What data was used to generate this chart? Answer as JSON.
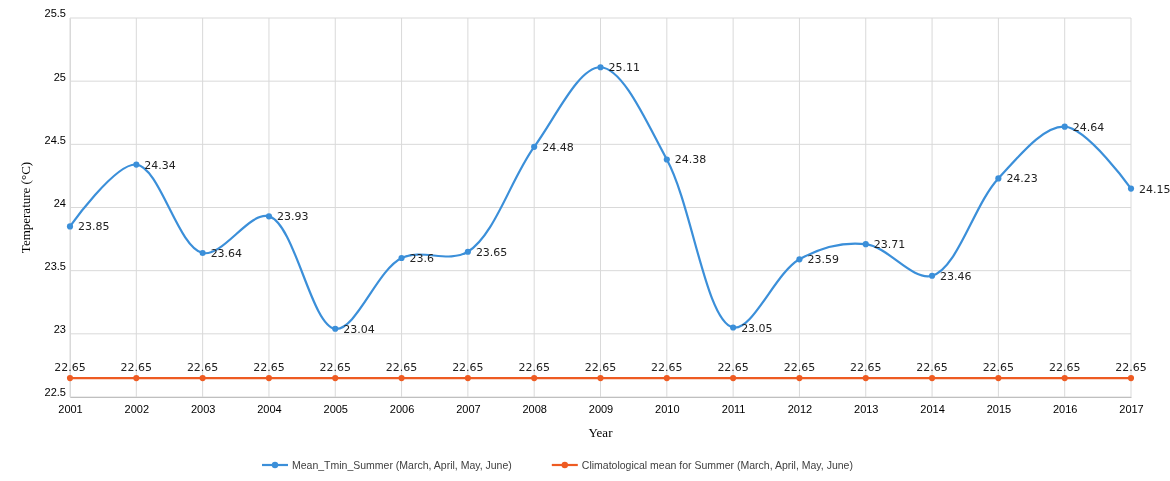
{
  "chart_data": {
    "type": "line",
    "xlabel": "Year",
    "ylabel": "Temperature (°C)",
    "categories": [
      "2001",
      "2002",
      "2003",
      "2004",
      "2005",
      "2006",
      "2007",
      "2008",
      "2009",
      "2010",
      "2011",
      "2012",
      "2013",
      "2014",
      "2015",
      "2016",
      "2017"
    ],
    "series": [
      {
        "name": "Mean_Tmin_Summer (March, April, May, June)",
        "color": "#3b8fd9",
        "values": [
          23.85,
          24.34,
          23.64,
          23.93,
          23.04,
          23.6,
          23.65,
          24.48,
          25.11,
          24.38,
          23.05,
          23.59,
          23.71,
          23.46,
          24.23,
          24.64,
          24.15
        ]
      },
      {
        "name": "Climatological mean for Summer (March, April, May, June)",
        "color": "#ee5b22",
        "values": [
          22.65,
          22.65,
          22.65,
          22.65,
          22.65,
          22.65,
          22.65,
          22.65,
          22.65,
          22.65,
          22.65,
          22.65,
          22.65,
          22.65,
          22.65,
          22.65,
          22.65
        ]
      }
    ],
    "ylim": [
      22.5,
      25.5
    ],
    "yticks": [
      22.5,
      23,
      23.5,
      24,
      24.5,
      25,
      25.5
    ],
    "grid": true,
    "legend": "bottom",
    "marker": "circle",
    "line_style": "solid",
    "data_labels": true
  }
}
